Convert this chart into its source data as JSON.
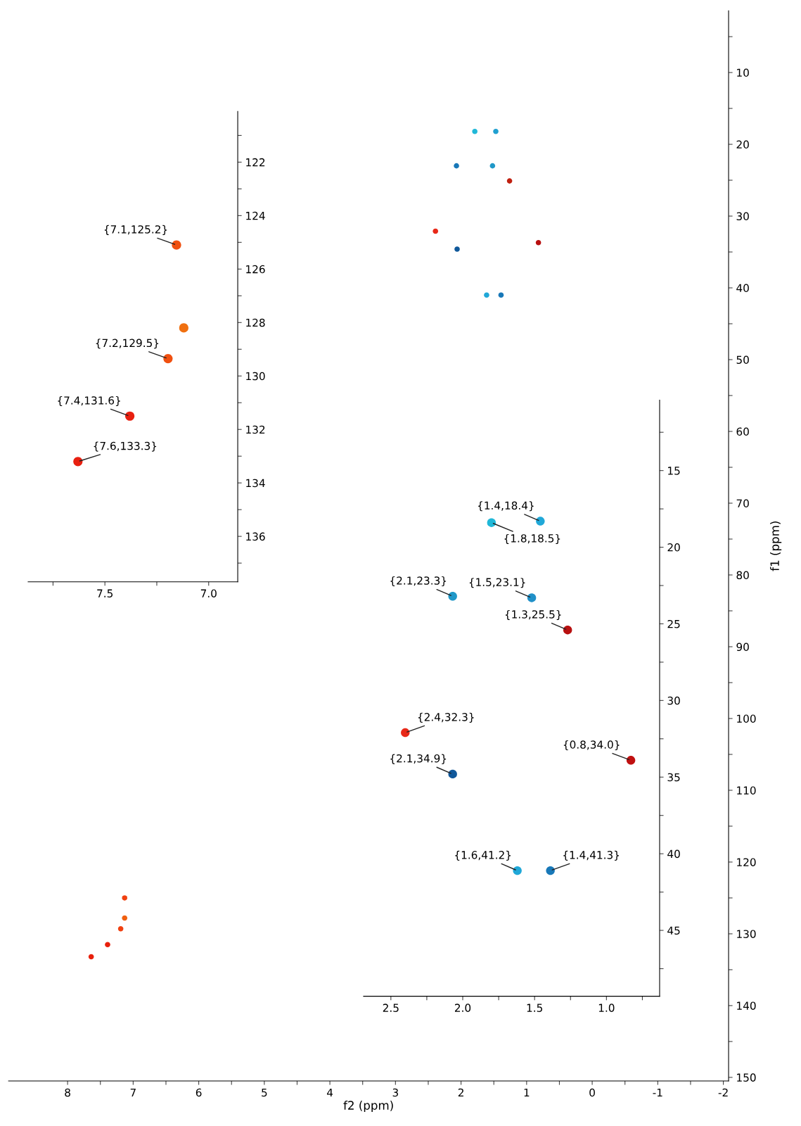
{
  "chart_data": [
    {
      "type": "scatter",
      "xlabel": "f2 (ppm)",
      "ylabel": "f1 (ppm)",
      "marker": "circle",
      "xlim": [
        8.9,
        -2.08
      ],
      "ylim": [
        150.5,
        1.4
      ],
      "xticks": [
        8,
        {
          "value": 7.5,
          "label": null
        },
        7,
        {
          "value": 6.5,
          "label": null
        },
        6,
        {
          "value": 5.5,
          "label": null
        },
        5,
        {
          "value": 4.5,
          "label": null
        },
        4,
        {
          "value": 3.5,
          "label": null
        },
        3,
        {
          "value": 2.5,
          "label": null
        },
        2,
        {
          "value": 1.5,
          "label": null
        },
        1,
        {
          "value": 0.5,
          "label": null
        },
        0,
        {
          "value": -0.5,
          "label": null
        },
        -1,
        {
          "value": -1.5,
          "label": null
        },
        -2
      ],
      "yticks": [
        {
          "value": 5,
          "label": null
        },
        10,
        {
          "value": 15,
          "label": null
        },
        20,
        {
          "value": 25,
          "label": null
        },
        30,
        {
          "value": 35,
          "label": null
        },
        40,
        {
          "value": 45,
          "label": null
        },
        50,
        {
          "value": 55,
          "label": null
        },
        60,
        {
          "value": 65,
          "label": null
        },
        70,
        {
          "value": 75,
          "label": null
        },
        80,
        {
          "value": 85,
          "label": null
        },
        90,
        {
          "value": 95,
          "label": null
        },
        100,
        {
          "value": 105,
          "label": null
        },
        110,
        {
          "value": 115,
          "label": null
        },
        120,
        {
          "value": 125,
          "label": null
        },
        130,
        {
          "value": 135,
          "label": null
        },
        140,
        {
          "value": 145,
          "label": null
        },
        150
      ],
      "series": [
        {
          "x": [
            7.64,
            7.39,
            7.19,
            7.13,
            7.13,
            1.79,
            1.47,
            2.07,
            1.52,
            1.26,
            2.39,
            2.06,
            0.82,
            1.61,
            1.39
          ],
          "values": [
            133.2,
            131.5,
            129.3,
            125.0,
            127.8,
            18.2,
            18.2,
            23.0,
            23.0,
            25.1,
            32.1,
            34.6,
            33.7,
            41.0,
            41.0
          ],
          "colors": [
            "#e8200c",
            "#e8200c",
            "#f04010",
            "#f04010",
            "#f06010",
            "#20b8d8",
            "#20a0d0",
            "#1878b8",
            "#2098c8",
            "#c02010",
            "#e82818",
            "#10589a",
            "#b81010",
            "#20a8d8",
            "#1878b8"
          ]
        }
      ]
    },
    {
      "type": "scatter",
      "marker": "circle",
      "xlim": [
        7.87,
        6.86
      ],
      "ylim": [
        137.7,
        120.1
      ],
      "xticks": [
        {
          "value": 7.75,
          "label": null
        },
        7.5,
        {
          "value": 7.25,
          "label": null
        },
        {
          "value": 7,
          "label": "7.0"
        }
      ],
      "yticks": [
        {
          "value": 121,
          "label": null
        },
        122,
        {
          "value": 123,
          "label": null
        },
        124,
        {
          "value": 125,
          "label": null
        },
        126,
        {
          "value": 127,
          "label": null
        },
        128,
        {
          "value": 129,
          "label": null
        },
        130,
        {
          "value": 131,
          "label": null
        },
        132,
        {
          "value": 133,
          "label": null
        },
        134,
        {
          "value": 135,
          "label": null
        },
        136,
        {
          "value": 137,
          "label": null
        }
      ],
      "series": [
        {
          "x": [
            7.155,
            7.12,
            7.196,
            7.38,
            7.63
          ],
          "values": [
            125.1,
            128.2,
            129.35,
            131.5,
            133.2
          ],
          "colors": [
            "#f05010",
            "#f07010",
            "#f05010",
            "#e82010",
            "#e82010"
          ]
        }
      ],
      "annotations": [
        {
          "text": "{7.1,125.2}",
          "x": 7.155,
          "y": 125.1
        },
        {
          "text": "{7.2,129.5}",
          "x": 7.196,
          "y": 129.35
        },
        {
          "text": "{7.4,131.6}",
          "x": 7.38,
          "y": 131.5
        },
        {
          "text": "{7.6,133.3}",
          "x": 7.63,
          "y": 133.2
        }
      ]
    },
    {
      "type": "scatter",
      "marker": "circle",
      "xlim": [
        2.69,
        0.63
      ],
      "ylim": [
        49.3,
        10.4
      ],
      "xticks": [
        2.5,
        {
          "value": 2.25,
          "label": null
        },
        {
          "value": 2,
          "label": "2.0"
        },
        {
          "value": 1.75,
          "label": null
        },
        1.5,
        {
          "value": 1.25,
          "label": null
        },
        {
          "value": 1,
          "label": "1.0"
        },
        {
          "value": 0.75,
          "label": null
        }
      ],
      "yticks": [
        {
          "value": 12.5,
          "label": null
        },
        15,
        {
          "value": 17.5,
          "label": null
        },
        20,
        {
          "value": 22.5,
          "label": null
        },
        25,
        {
          "value": 27.5,
          "label": null
        },
        30,
        {
          "value": 32.5,
          "label": null
        },
        35,
        {
          "value": 37.5,
          "label": null
        },
        40,
        {
          "value": 42.5,
          "label": null
        },
        45,
        {
          "value": 47.5,
          "label": null
        }
      ],
      "series": [
        {
          "x": [
            1.46,
            1.8,
            2.07,
            1.52,
            1.27,
            2.4,
            2.07,
            0.83,
            1.62,
            1.39
          ],
          "values": [
            18.3,
            18.4,
            23.2,
            23.3,
            25.4,
            32.1,
            34.8,
            33.9,
            41.1,
            41.1
          ],
          "colors": [
            "#20a8d8",
            "#20b8d8",
            "#2098c8",
            "#2090c8",
            "#b81010",
            "#e82818",
            "#10589a",
            "#c01010",
            "#20a8d8",
            "#1878b8"
          ]
        }
      ],
      "annotations": [
        {
          "text": "{1.4,18.4}",
          "x": 1.46,
          "y": 18.3
        },
        {
          "text": "{1.8,18.5}",
          "x": 1.8,
          "y": 18.4
        },
        {
          "text": "{2.1,23.3}",
          "x": 2.07,
          "y": 23.2
        },
        {
          "text": "{1.5,23.1}",
          "x": 1.52,
          "y": 23.3
        },
        {
          "text": "{1.3,25.5}",
          "x": 1.27,
          "y": 25.4
        },
        {
          "text": "{2.4,32.3}",
          "x": 2.4,
          "y": 32.1
        },
        {
          "text": "{2.1,34.9}",
          "x": 2.07,
          "y": 34.8
        },
        {
          "text": "{0.8,34.0}",
          "x": 0.83,
          "y": 33.9
        },
        {
          "text": "{1.6,41.2}",
          "x": 1.62,
          "y": 41.1
        },
        {
          "text": "{1.4,41.3}",
          "x": 1.39,
          "y": 41.1
        }
      ]
    }
  ]
}
